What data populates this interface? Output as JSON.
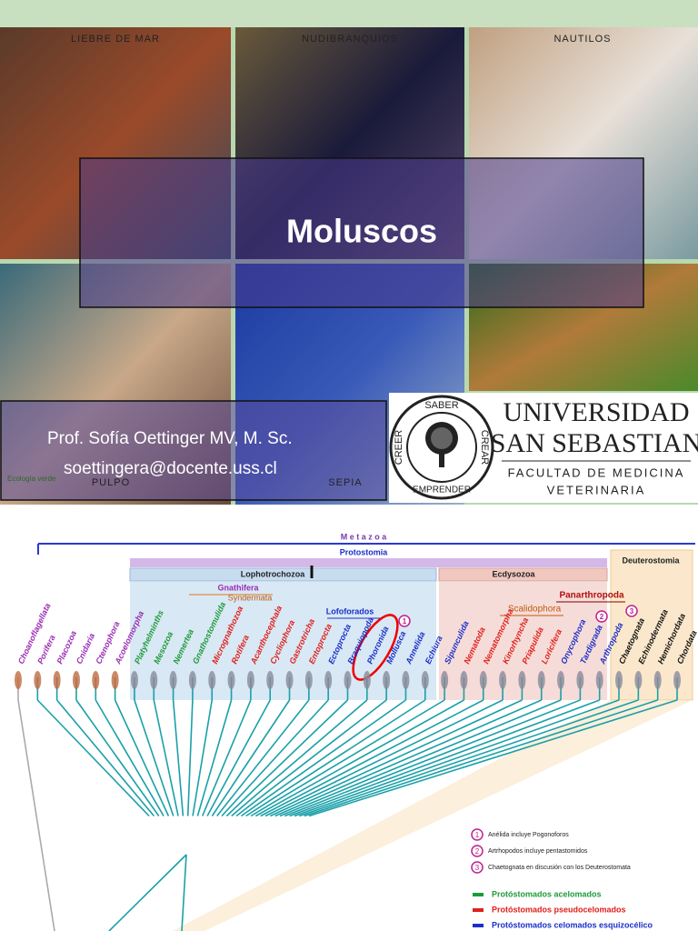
{
  "slide": {
    "photo_labels": [
      "LIEBRE DE MAR",
      "NUDIBRANQUIOS",
      "NAUTILOS",
      "PULPO",
      "SEPIA"
    ],
    "watermark": "Ecología verde",
    "title": "Moluscos",
    "author": "Prof. Sofía Oettinger MV, M. Sc.",
    "email": "soettingera@docente.uss.cl",
    "logo": {
      "seal_top": "SABER",
      "seal_right": "CREAR",
      "seal_bottom": "EMPRENDER",
      "seal_left": "CREER",
      "name_line1": "UNIVERSIDAD",
      "name_line2": "SAN SEBASTIAN",
      "faculty_line1": "FACULTAD DE MEDICINA",
      "faculty_line2": "VETERINARIA"
    }
  },
  "tree": {
    "metazoa": "M e t a z o a",
    "protostomia": "Protostomia",
    "lophotrochozoa": "Lophotrochozoa",
    "ecdysozoa": "Ecdysozoa",
    "deuterostomia": "Deuterostomia",
    "gnathifera": "Gnathifera",
    "syndermata": "Syndermata",
    "lofoforados": "Lofoforados",
    "scalidophora": "Scalidophora",
    "panarthropoda": "Panarthropoda",
    "numbers": [
      "1",
      "2",
      "3"
    ],
    "taxa": [
      {
        "name": "Choanoflagellata",
        "color": "#9a2bb5"
      },
      {
        "name": "Porifera",
        "color": "#9a2bb5"
      },
      {
        "name": "Placozoa",
        "color": "#9a2bb5"
      },
      {
        "name": "Cnidaria",
        "color": "#9a2bb5"
      },
      {
        "name": "Ctenophora",
        "color": "#9a2bb5"
      },
      {
        "name": "Acoelomorpha",
        "color": "#9a2bb5"
      },
      {
        "name": "Platyhelminths",
        "color": "#1f9a3a"
      },
      {
        "name": "Mesozoa",
        "color": "#1f9a3a"
      },
      {
        "name": "Nemertea",
        "color": "#1f9a3a"
      },
      {
        "name": "Gnathostomulida",
        "color": "#1f9a3a"
      },
      {
        "name": "Micrognathozoa",
        "color": "#e0201c"
      },
      {
        "name": "Rotifera",
        "color": "#e0201c"
      },
      {
        "name": "Acanthocephala",
        "color": "#e0201c"
      },
      {
        "name": "Cycliophora",
        "color": "#e0201c"
      },
      {
        "name": "Gastrotricha",
        "color": "#e0201c"
      },
      {
        "name": "Entoprocta",
        "color": "#e0201c"
      },
      {
        "name": "Ectoprocta",
        "color": "#1b2fc9"
      },
      {
        "name": "Braquiopoda",
        "color": "#1b2fc9"
      },
      {
        "name": "Phoronida",
        "color": "#1b2fc9"
      },
      {
        "name": "Mollusca",
        "color": "#1b2fc9"
      },
      {
        "name": "Annelida",
        "color": "#1b2fc9"
      },
      {
        "name": "Echiura",
        "color": "#1b2fc9"
      },
      {
        "name": "Sipunculida",
        "color": "#1b2fc9"
      },
      {
        "name": "Nematoda",
        "color": "#e0201c"
      },
      {
        "name": "Nematomorpha",
        "color": "#e0201c"
      },
      {
        "name": "Kinorhyncha",
        "color": "#e0201c"
      },
      {
        "name": "Priapulida",
        "color": "#e0201c"
      },
      {
        "name": "Loricifera",
        "color": "#e0201c"
      },
      {
        "name": "Onycophora",
        "color": "#1b2fc9"
      },
      {
        "name": "Tardigrada",
        "color": "#1b2fc9"
      },
      {
        "name": "Arthropoda",
        "color": "#1b2fc9"
      },
      {
        "name": "Chaetognata",
        "color": "#111111"
      },
      {
        "name": "Echinodermata",
        "color": "#111111"
      },
      {
        "name": "Hemichordata",
        "color": "#111111"
      },
      {
        "name": "Chordata",
        "color": "#111111"
      }
    ],
    "notes": [
      "Anélida incluye Pogonoforos",
      "Artrhopodos incluye pentastomidos",
      "Chaetognata en discusión con los Deuterostomata"
    ],
    "groups": [
      {
        "label": "Protóstomados acelomados",
        "color": "#1f9a3a"
      },
      {
        "label": "Protóstomados pseudocelomados",
        "color": "#e0201c"
      },
      {
        "label": "Protóstomados celomados esquizocélico",
        "color": "#1b2fc9"
      }
    ]
  }
}
